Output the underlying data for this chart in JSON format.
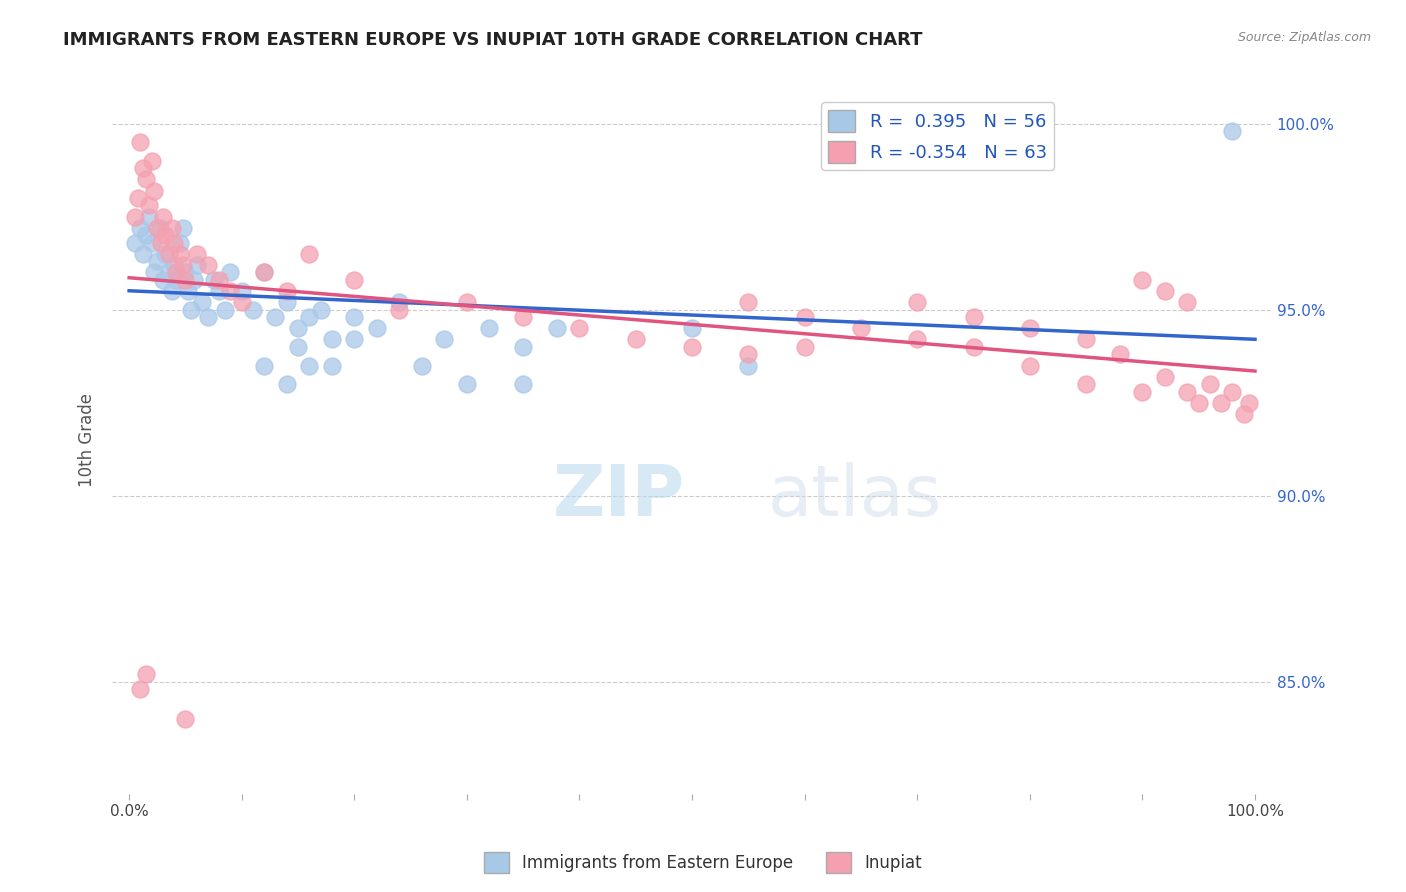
{
  "title": "IMMIGRANTS FROM EASTERN EUROPE VS INUPIAT 10TH GRADE CORRELATION CHART",
  "source": "Source: ZipAtlas.com",
  "ylabel": "10th Grade",
  "y_tick_labels": [
    "85.0%",
    "90.0%",
    "95.0%",
    "100.0%"
  ],
  "y_tick_values": [
    0.85,
    0.9,
    0.95,
    1.0
  ],
  "blue_R": 0.395,
  "blue_N": 56,
  "pink_R": -0.354,
  "pink_N": 63,
  "blue_color": "#a8c8e8",
  "pink_color": "#f4a0b0",
  "blue_line_color": "#3366cc",
  "pink_line_color": "#e05580",
  "legend_label_blue": "Immigrants from Eastern Europe",
  "legend_label_pink": "Inupiat",
  "background_color": "#ffffff",
  "grid_color": "#cccccc",
  "blue_scatter_x": [
    0.005,
    0.01,
    0.012,
    0.015,
    0.018,
    0.02,
    0.022,
    0.025,
    0.027,
    0.03,
    0.032,
    0.035,
    0.038,
    0.04,
    0.042,
    0.045,
    0.048,
    0.05,
    0.052,
    0.055,
    0.058,
    0.06,
    0.065,
    0.07,
    0.075,
    0.08,
    0.085,
    0.09,
    0.1,
    0.11,
    0.12,
    0.13,
    0.14,
    0.15,
    0.16,
    0.17,
    0.18,
    0.2,
    0.22,
    0.24,
    0.26,
    0.28,
    0.3,
    0.32,
    0.35,
    0.38,
    0.12,
    0.15,
    0.18,
    0.2,
    0.14,
    0.16,
    0.35,
    0.5,
    0.55,
    0.98
  ],
  "blue_scatter_y": [
    0.968,
    0.972,
    0.965,
    0.97,
    0.975,
    0.968,
    0.96,
    0.963,
    0.972,
    0.958,
    0.965,
    0.96,
    0.955,
    0.962,
    0.958,
    0.968,
    0.972,
    0.96,
    0.955,
    0.95,
    0.958,
    0.962,
    0.952,
    0.948,
    0.958,
    0.955,
    0.95,
    0.96,
    0.955,
    0.95,
    0.96,
    0.948,
    0.952,
    0.945,
    0.948,
    0.95,
    0.942,
    0.948,
    0.945,
    0.952,
    0.935,
    0.942,
    0.93,
    0.945,
    0.94,
    0.945,
    0.935,
    0.94,
    0.935,
    0.942,
    0.93,
    0.935,
    0.93,
    0.945,
    0.935,
    0.998
  ],
  "pink_scatter_x": [
    0.005,
    0.008,
    0.01,
    0.012,
    0.015,
    0.018,
    0.02,
    0.022,
    0.025,
    0.028,
    0.03,
    0.032,
    0.035,
    0.038,
    0.04,
    0.042,
    0.045,
    0.048,
    0.05,
    0.06,
    0.07,
    0.08,
    0.09,
    0.1,
    0.12,
    0.14,
    0.16,
    0.2,
    0.24,
    0.3,
    0.35,
    0.4,
    0.45,
    0.5,
    0.55,
    0.6,
    0.65,
    0.7,
    0.75,
    0.8,
    0.85,
    0.9,
    0.92,
    0.94,
    0.95,
    0.96,
    0.97,
    0.98,
    0.99,
    0.995,
    0.7,
    0.75,
    0.8,
    0.85,
    0.88,
    0.9,
    0.92,
    0.94,
    0.55,
    0.6,
    0.05,
    0.015,
    0.01
  ],
  "pink_scatter_y": [
    0.975,
    0.98,
    0.995,
    0.988,
    0.985,
    0.978,
    0.99,
    0.982,
    0.972,
    0.968,
    0.975,
    0.97,
    0.965,
    0.972,
    0.968,
    0.96,
    0.965,
    0.962,
    0.958,
    0.965,
    0.962,
    0.958,
    0.955,
    0.952,
    0.96,
    0.955,
    0.965,
    0.958,
    0.95,
    0.952,
    0.948,
    0.945,
    0.942,
    0.94,
    0.952,
    0.948,
    0.945,
    0.942,
    0.94,
    0.935,
    0.93,
    0.928,
    0.932,
    0.928,
    0.925,
    0.93,
    0.925,
    0.928,
    0.922,
    0.925,
    0.952,
    0.948,
    0.945,
    0.942,
    0.938,
    0.958,
    0.955,
    0.952,
    0.938,
    0.94,
    0.84,
    0.852,
    0.848
  ],
  "ylim": [
    0.82,
    1.01
  ],
  "xlim": [
    -0.015,
    1.015
  ]
}
